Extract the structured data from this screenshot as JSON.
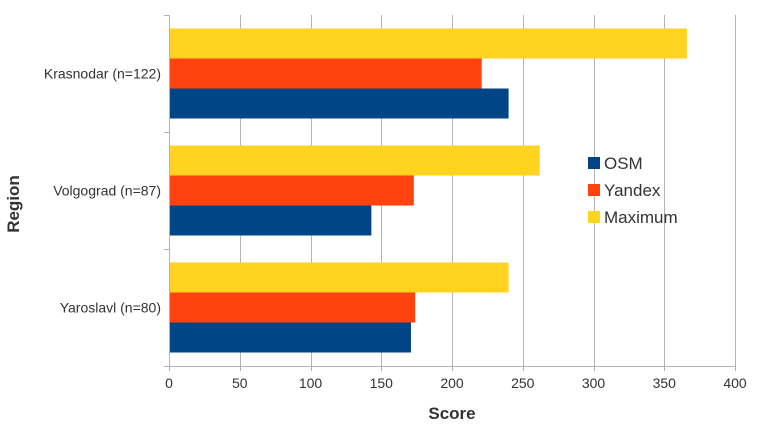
{
  "chart_data": {
    "type": "bar",
    "orientation": "horizontal",
    "categories": [
      "Krasnodar (n=122)",
      "Volgograd (n=87)",
      "Yaroslavl (n=80)"
    ],
    "series": [
      {
        "name": "OSM",
        "color": "#004586",
        "values": [
          240,
          143,
          171
        ]
      },
      {
        "name": "Yandex",
        "color": "#ff420e",
        "values": [
          221,
          173,
          174
        ]
      },
      {
        "name": "Maximum",
        "color": "#ffd320",
        "values": [
          366,
          262,
          240
        ]
      }
    ],
    "xlabel": "Score",
    "ylabel": "Region",
    "xlim": [
      0,
      400
    ],
    "xticks": [
      0,
      50,
      100,
      150,
      200,
      250,
      300,
      350,
      400
    ],
    "grid": true,
    "legend_position": "right"
  }
}
